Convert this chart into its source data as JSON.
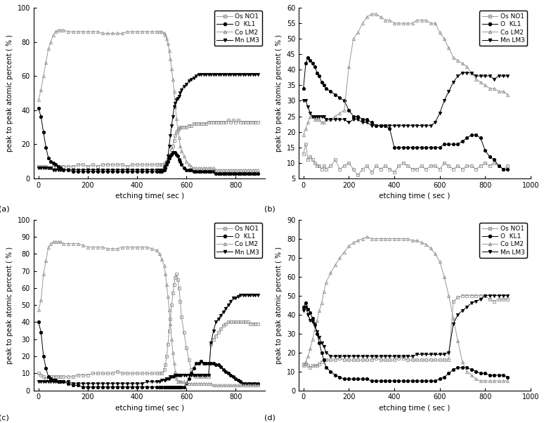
{
  "panels": [
    {
      "label": "(a)",
      "ylim": [
        0,
        100
      ],
      "yticks": [
        0,
        20,
        40,
        60,
        80,
        100
      ],
      "xlim": [
        -20,
        920
      ],
      "xticks": [
        0,
        200,
        400,
        600,
        800
      ],
      "xlabel": "etching time( sec )",
      "ylabel": "peak to peak atomic percent ( % )"
    },
    {
      "label": "(b)",
      "ylim": [
        5,
        60
      ],
      "yticks": [
        5,
        10,
        15,
        20,
        25,
        30,
        35,
        40,
        45,
        50,
        55,
        60
      ],
      "xlim": [
        -20,
        980
      ],
      "xticks": [
        0,
        200,
        400,
        600,
        800,
        1000
      ],
      "xlabel": "etching time ( sec )",
      "ylabel": "peak to peak atomic percent ( % )"
    },
    {
      "label": "(c)",
      "ylim": [
        0,
        100
      ],
      "yticks": [
        0,
        10,
        20,
        30,
        40,
        50,
        60,
        70,
        80,
        90,
        100
      ],
      "xlim": [
        -20,
        920
      ],
      "xticks": [
        0,
        200,
        400,
        600,
        800
      ],
      "xlabel": "etching time( sec )",
      "ylabel": "peak to peak atomic percent ( % )"
    },
    {
      "label": "(d)",
      "ylim": [
        0,
        90
      ],
      "yticks": [
        0,
        10,
        20,
        30,
        40,
        50,
        60,
        70,
        80,
        90
      ],
      "xlim": [
        -20,
        980
      ],
      "xticks": [
        0,
        200,
        400,
        600,
        800,
        1000
      ],
      "xlabel": "etching time ( sec )",
      "ylabel": "peak to peak atomic percent ( % )"
    }
  ],
  "legend_labels": [
    "Os NO1",
    "O  KL1",
    "Co LM2",
    "Mn LM3"
  ]
}
